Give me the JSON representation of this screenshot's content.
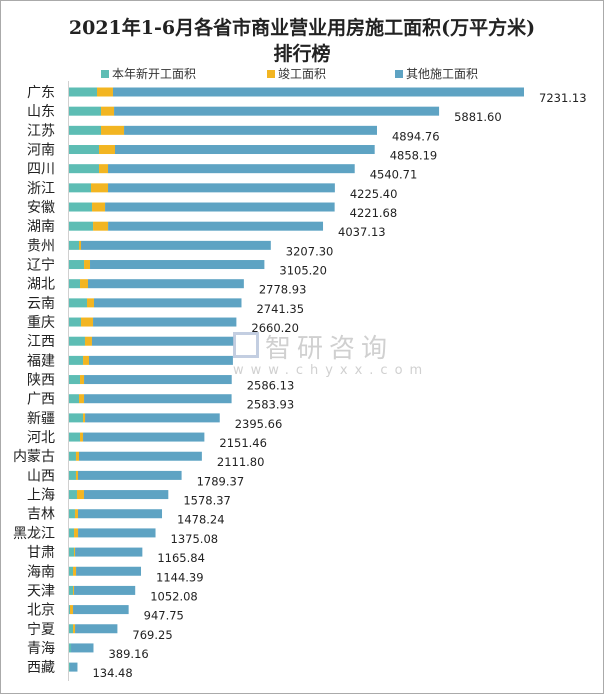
{
  "chart_data": {
    "type": "bar",
    "orientation": "horizontal",
    "stacked": true,
    "title": "2021年1-6月各省市商业营业用房施工面积(万平方米)",
    "title_line2": "排行榜",
    "categories": [
      "广东",
      "山东",
      "江苏",
      "河南",
      "四川",
      "浙江",
      "安徽",
      "湖南",
      "贵州",
      "辽宁",
      "湖北",
      "云南",
      "重庆",
      "江西",
      "福建",
      "陕西",
      "广西",
      "新疆",
      "河北",
      "内蒙古",
      "山西",
      "上海",
      "吉林",
      "黑龙江",
      "甘肃",
      "海南",
      "天津",
      "北京",
      "宁夏",
      "青海",
      "西藏"
    ],
    "series": [
      {
        "name": "本年新开工面积",
        "color": "#5dbdb4",
        "values": [
          445,
          509,
          509,
          477,
          477,
          350,
          366,
          382,
          159,
          239,
          175,
          286,
          191,
          254,
          223,
          175,
          159,
          223,
          175,
          111,
          111,
          127,
          95,
          80,
          80,
          64,
          64,
          16,
          64,
          32,
          16
        ]
      },
      {
        "name": "竣工面积",
        "color": "#f2b522",
        "values": [
          254,
          207,
          366,
          254,
          143,
          270,
          207,
          239,
          32,
          95,
          127,
          111,
          191,
          111,
          95,
          64,
          80,
          32,
          48,
          48,
          32,
          111,
          48,
          64,
          16,
          48,
          16,
          48,
          32,
          0,
          0
        ]
      },
      {
        "name": "其他施工面积",
        "color": "#5ea3c3",
        "values": [
          6532.13,
          5165.6,
          4019.76,
          4127.19,
          3920.71,
          3605.4,
          3648.68,
          3416.13,
          3016.3,
          2771.2,
          2476.93,
          2344.35,
          2278.2,
          2255,
          2287,
          2347.13,
          2344.93,
          2140.66,
          1928.46,
          1952.8,
          1646.37,
          1340.37,
          1335.24,
          1231.08,
          1069.84,
          1032.39,
          972.08,
          883.75,
          673.25,
          357.16,
          118.48
        ]
      }
    ],
    "totals": [
      7231.13,
      5881.6,
      4894.76,
      4858.19,
      4540.71,
      4225.4,
      4221.68,
      4037.13,
      3207.3,
      3105.2,
      2778.93,
      2741.35,
      2660.2,
      2620,
      2605,
      2586.13,
      2583.93,
      2395.66,
      2151.46,
      2111.8,
      1789.37,
      1578.37,
      1478.24,
      1375.08,
      1165.84,
      1144.39,
      1052.08,
      947.75,
      769.25,
      389.16,
      134.48
    ],
    "total_labels": [
      "7231.13",
      "5881.60",
      "4894.76",
      "4858.19",
      "4540.71",
      "4225.40",
      "4221.68",
      "4037.13",
      "3207.30",
      "3105.20",
      "2778.93",
      "2741.35",
      "2660.20",
      null,
      null,
      "2586.13",
      "2583.93",
      "2395.66",
      "2151.46",
      "2111.80",
      "1789.37",
      "1578.37",
      "1478.24",
      "1375.08",
      "1165.84",
      "1144.39",
      "1052.08",
      "947.75",
      "769.25",
      "389.16",
      "134.48"
    ],
    "xlim": [
      0,
      7231.13
    ],
    "grid": false,
    "legend_position": "top"
  },
  "watermark": {
    "name": "智研咨询",
    "url": "www.chyxx.com"
  }
}
